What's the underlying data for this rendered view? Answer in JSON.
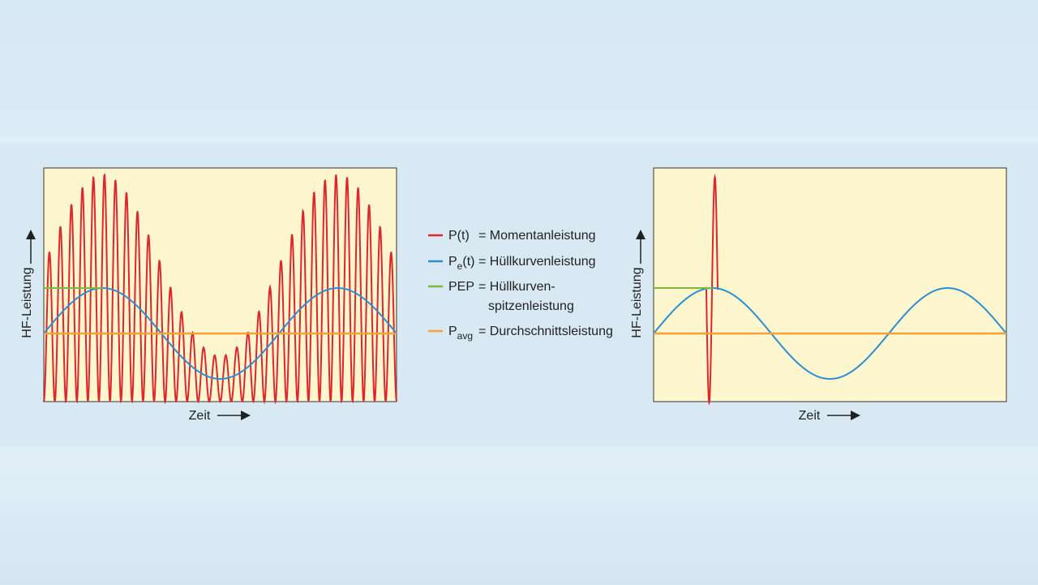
{
  "left_chart": {
    "y_axis_label": "HF-Leistung",
    "x_axis_label": "Zeit"
  },
  "right_chart": {
    "y_axis_label": "HF-Leistung",
    "x_axis_label": "Zeit"
  },
  "legend": {
    "items": [
      {
        "color": "#e0262b",
        "symbol": {
          "base": "P(t)"
        },
        "description": [
          "= Momentanleistung"
        ]
      },
      {
        "color": "#2b8fd0",
        "symbol": {
          "base": "P",
          "sub": "e",
          "rest": "(t)"
        },
        "description": [
          "= Hüllkurvenleistung"
        ]
      },
      {
        "color": "#7cbb3a",
        "symbol": {
          "base": "PEP"
        },
        "description": [
          "= Hüllkurven-",
          "spitzenleistung"
        ]
      },
      {
        "color": "#f2a23a",
        "symbol": {
          "base": "P",
          "sub": "avg"
        },
        "description": [
          "= Durchschnittsleistung"
        ]
      }
    ]
  }
}
